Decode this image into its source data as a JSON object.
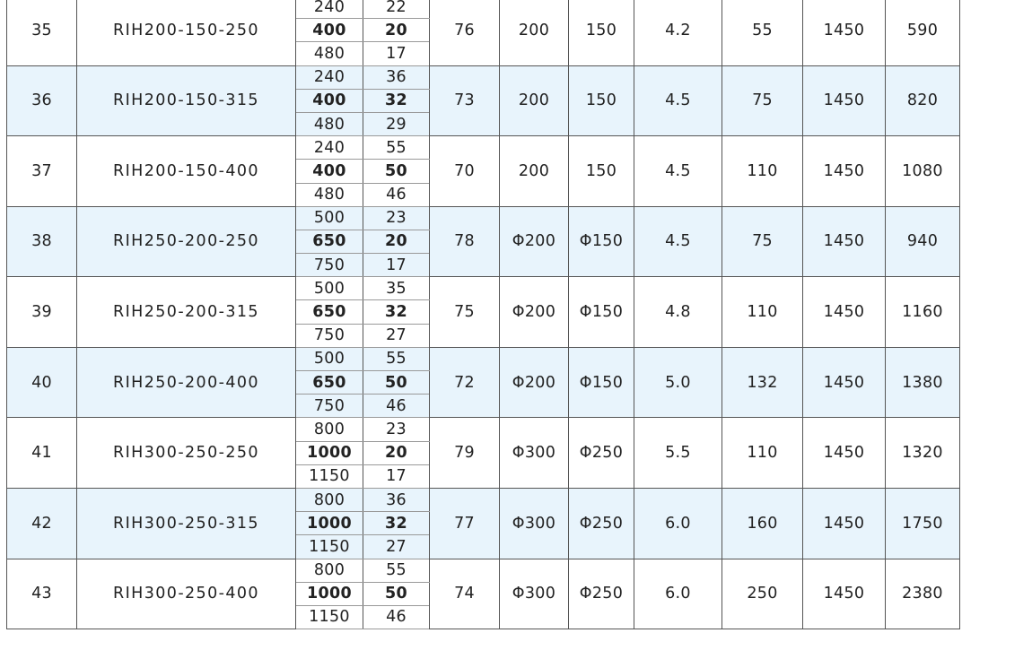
{
  "rows": [
    {
      "no": "35",
      "model": "RIH200-150-250",
      "flows": [
        "240",
        "400",
        "480"
      ],
      "heads": [
        "22",
        "20",
        "17"
      ],
      "eff": "76",
      "inlet": "200",
      "outlet": "150",
      "npsh": "4.2",
      "power": "55",
      "speed": "1450",
      "weight": "590"
    },
    {
      "no": "36",
      "model": "RIH200-150-315",
      "flows": [
        "240",
        "400",
        "480"
      ],
      "heads": [
        "36",
        "32",
        "29"
      ],
      "eff": "73",
      "inlet": "200",
      "outlet": "150",
      "npsh": "4.5",
      "power": "75",
      "speed": "1450",
      "weight": "820"
    },
    {
      "no": "37",
      "model": "RIH200-150-400",
      "flows": [
        "240",
        "400",
        "480"
      ],
      "heads": [
        "55",
        "50",
        "46"
      ],
      "eff": "70",
      "inlet": "200",
      "outlet": "150",
      "npsh": "4.5",
      "power": "110",
      "speed": "1450",
      "weight": "1080"
    },
    {
      "no": "38",
      "model": "RIH250-200-250",
      "flows": [
        "500",
        "650",
        "750"
      ],
      "heads": [
        "23",
        "20",
        "17"
      ],
      "eff": "78",
      "inlet": "Φ200",
      "outlet": "Φ150",
      "npsh": "4.5",
      "power": "75",
      "speed": "1450",
      "weight": "940"
    },
    {
      "no": "39",
      "model": "RIH250-200-315",
      "flows": [
        "500",
        "650",
        "750"
      ],
      "heads": [
        "35",
        "32",
        "27"
      ],
      "eff": "75",
      "inlet": "Φ200",
      "outlet": "Φ150",
      "npsh": "4.8",
      "power": "110",
      "speed": "1450",
      "weight": "1160"
    },
    {
      "no": "40",
      "model": "RIH250-200-400",
      "flows": [
        "500",
        "650",
        "750"
      ],
      "heads": [
        "55",
        "50",
        "46"
      ],
      "eff": "72",
      "inlet": "Φ200",
      "outlet": "Φ150",
      "npsh": "5.0",
      "power": "132",
      "speed": "1450",
      "weight": "1380"
    },
    {
      "no": "41",
      "model": "RIH300-250-250",
      "flows": [
        "800",
        "1000",
        "1150"
      ],
      "heads": [
        "23",
        "20",
        "17"
      ],
      "eff": "79",
      "inlet": "Φ300",
      "outlet": "Φ250",
      "npsh": "5.5",
      "power": "110",
      "speed": "1450",
      "weight": "1320"
    },
    {
      "no": "42",
      "model": "RIH300-250-315",
      "flows": [
        "800",
        "1000",
        "1150"
      ],
      "heads": [
        "36",
        "32",
        "27"
      ],
      "eff": "77",
      "inlet": "Φ300",
      "outlet": "Φ250",
      "npsh": "6.0",
      "power": "160",
      "speed": "1450",
      "weight": "1750"
    },
    {
      "no": "43",
      "model": "RIH300-250-400",
      "flows": [
        "800",
        "1000",
        "1150"
      ],
      "heads": [
        "55",
        "50",
        "46"
      ],
      "eff": "74",
      "inlet": "Φ300",
      "outlet": "Φ250",
      "npsh": "6.0",
      "power": "250",
      "speed": "1450",
      "weight": "2380"
    }
  ],
  "colors": {
    "alt_row": "#e8f4fc",
    "border": "#555555"
  }
}
